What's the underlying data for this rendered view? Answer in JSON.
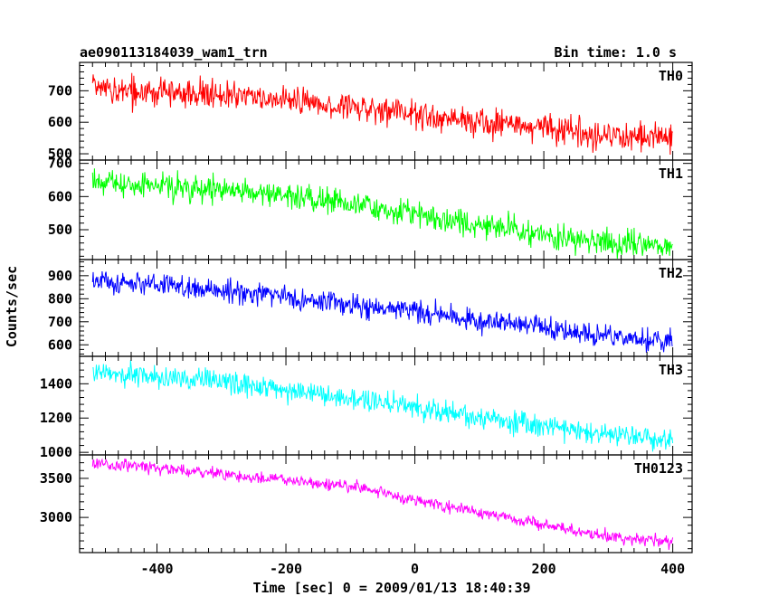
{
  "header": {
    "title": "ae090113184039_wam1_trn",
    "bin_time": "Bin time: 1.0 s"
  },
  "chart_data": {
    "type": "line",
    "title": "ae090113184039_wam1_trn",
    "xlabel": "Time [sec] 0 = 2009/01/13 18:40:39",
    "ylabel": "Counts/sec",
    "xlim": [
      -520,
      430
    ],
    "xticks": [
      -400,
      -200,
      0,
      200,
      400
    ],
    "x_start": -500,
    "x_end": 400,
    "bin_sec": 1.0,
    "grid": false,
    "panels": [
      {
        "name": "TH0",
        "color": "#ff0000",
        "ylim": [
          480,
          790
        ],
        "yticks": [
          500,
          600,
          700
        ],
        "trend": [
          [
            -500,
            705
          ],
          [
            -300,
            685
          ],
          [
            -100,
            650
          ],
          [
            100,
            600
          ],
          [
            300,
            560
          ],
          [
            400,
            550
          ]
        ],
        "noise": 38
      },
      {
        "name": "TH1",
        "color": "#00ff00",
        "ylim": [
          410,
          710
        ],
        "yticks": [
          500,
          600,
          700
        ],
        "trend": [
          [
            -500,
            640
          ],
          [
            -200,
            610
          ],
          [
            0,
            545
          ],
          [
            200,
            485
          ],
          [
            400,
            445
          ]
        ],
        "noise": 32
      },
      {
        "name": "TH2",
        "color": "#0000ff",
        "ylim": [
          550,
          970
        ],
        "yticks": [
          600,
          700,
          800,
          900
        ],
        "trend": [
          [
            -500,
            880
          ],
          [
            -300,
            840
          ],
          [
            -100,
            775
          ],
          [
            100,
            705
          ],
          [
            300,
            640
          ],
          [
            400,
            615
          ]
        ],
        "noise": 42
      },
      {
        "name": "TH3",
        "color": "#00ffff",
        "ylim": [
          985,
          1560
        ],
        "yticks": [
          1000,
          1200,
          1400
        ],
        "trend": [
          [
            -500,
            1470
          ],
          [
            -300,
            1410
          ],
          [
            -100,
            1320
          ],
          [
            100,
            1210
          ],
          [
            300,
            1100
          ],
          [
            400,
            1070
          ]
        ],
        "noise": 55
      },
      {
        "name": "TH0123",
        "color": "#ff00ff",
        "ylim": [
          2550,
          3800
        ],
        "yticks": [
          3000,
          3500
        ],
        "trend": [
          [
            -500,
            3700
          ],
          [
            -300,
            3560
          ],
          [
            -100,
            3390
          ],
          [
            100,
            3060
          ],
          [
            300,
            2750
          ],
          [
            400,
            2680
          ]
        ],
        "noise": 65
      }
    ]
  }
}
